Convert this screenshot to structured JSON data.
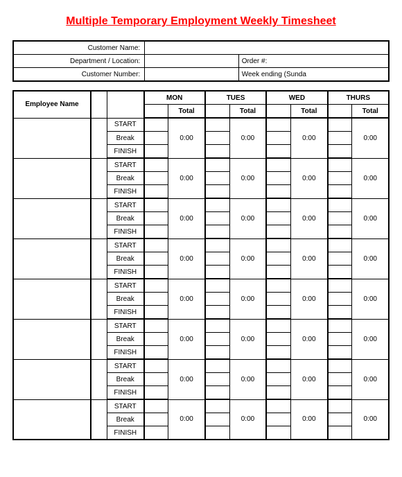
{
  "title": "Multiple Temporary Employment Weekly Timesheet",
  "info": {
    "customer_name_label": "Customer Name:",
    "customer_name_value": "",
    "department_label": "Department / Location:",
    "department_value": "",
    "order_label": "Order #:",
    "order_value": "",
    "customer_number_label": "Customer Number:",
    "customer_number_value": "",
    "week_ending_label": "Week ending (Sunda",
    "week_ending_value": ""
  },
  "table": {
    "employee_name_header": "Employee Name",
    "days": [
      "MON",
      "TUES",
      "WED",
      "THURS"
    ],
    "total_label": "Total",
    "row_labels": [
      "START",
      "Break",
      "FINISH"
    ],
    "default_total": "0:00",
    "employee_count": 8,
    "colors": {
      "title": "#ff0000",
      "border": "#000000",
      "background": "#ffffff",
      "text": "#000000"
    },
    "fonts": {
      "title_size": 16,
      "cell_size": 10,
      "header_size": 11
    }
  }
}
